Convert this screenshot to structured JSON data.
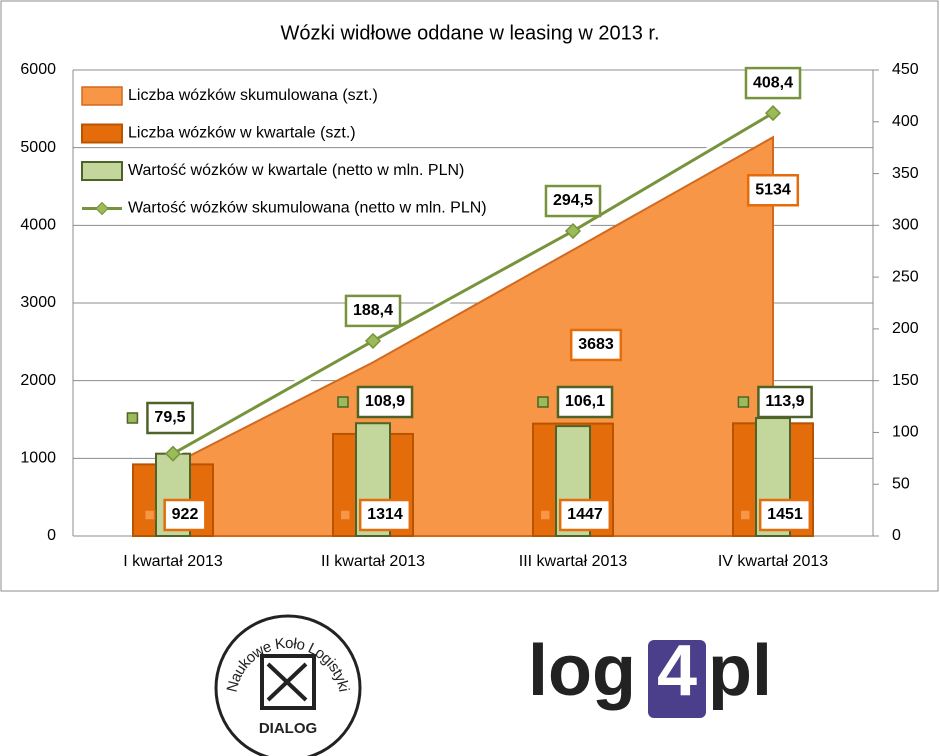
{
  "chart_data": {
    "type": "combo",
    "title": "Wózki widłowe oddane w leasing w 2013 r.",
    "categories": [
      "I kwartał 2013",
      "II kwartał 2013",
      "III kwartał 2013",
      "IV kwartał 2013"
    ],
    "ylim": [
      0,
      6000
    ],
    "yticks": [
      0,
      1000,
      2000,
      3000,
      4000,
      5000,
      6000
    ],
    "y2lim": [
      0,
      450
    ],
    "y2ticks": [
      0,
      50,
      100,
      150,
      200,
      250,
      300,
      350,
      400,
      450
    ],
    "grid": true,
    "legend": "top-left",
    "series": [
      {
        "name": "Liczba wózków skumulowana (szt.)",
        "type": "area",
        "color": "#f79646",
        "values": [
          922,
          2236,
          3683,
          5134
        ],
        "value_labels": [
          null,
          null,
          "3683",
          "5134"
        ]
      },
      {
        "name": "Liczba wózków w kwartale (szt.)",
        "type": "bar",
        "color": "#e46c0a",
        "values": [
          922,
          1314,
          1447,
          1451
        ],
        "value_labels": [
          "922",
          "1314",
          "1447",
          "1451"
        ]
      },
      {
        "name": "Wartość wózków w kwartale (netto w mln. PLN)",
        "type": "bar",
        "color": "#c3d69b",
        "axis": "y2",
        "values": [
          79.5,
          108.9,
          106.1,
          113.9
        ],
        "value_labels": [
          "79,5",
          "108,9",
          "106,1",
          "113,9"
        ]
      },
      {
        "name": "Wartość wózków skumulowana (netto w mln. PLN)",
        "type": "line",
        "color": "#77933c",
        "axis": "y2",
        "values": [
          79.5,
          188.4,
          294.5,
          408.4
        ],
        "value_labels": [
          null,
          "188,4",
          "294,5",
          "408,4"
        ]
      }
    ]
  },
  "logos": {
    "left_ring": "Naukowe Koło Logistyki",
    "left_bottom": "DIALOG",
    "right": [
      "log",
      "4",
      "pl"
    ]
  }
}
